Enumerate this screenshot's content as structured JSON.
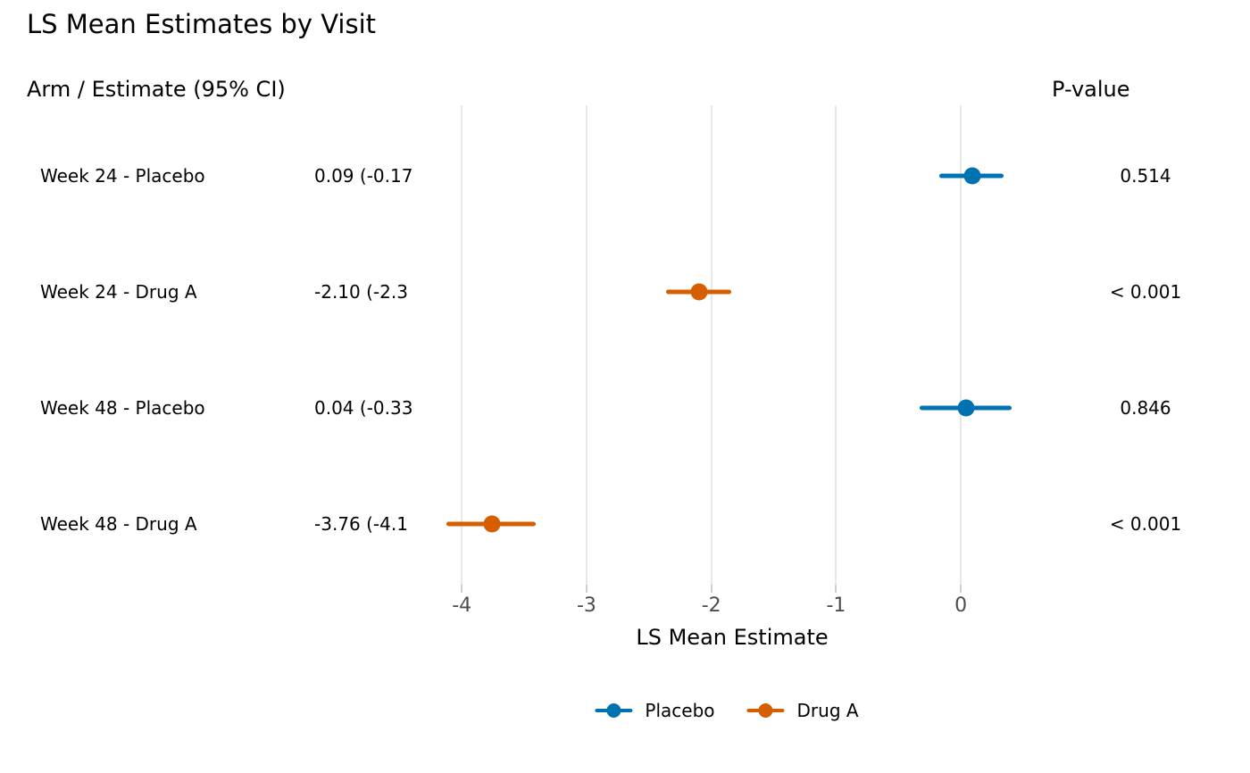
{
  "title": "LS Mean Estimates by Visit",
  "header": {
    "left": "Arm / Estimate (95% CI)",
    "right": "P-value"
  },
  "axis": {
    "title": "LS Mean Estimate",
    "tick_labels": [
      "-4",
      "-3",
      "-2",
      "-1",
      "0"
    ],
    "tick_values": [
      -4,
      -3,
      -2,
      -1,
      0
    ]
  },
  "legend": {
    "items": [
      {
        "label": "Placebo",
        "color": "#0072B2"
      },
      {
        "label": "Drug A",
        "color": "#D55E00"
      }
    ]
  },
  "colors": {
    "background": "#ffffff",
    "gridline": "#e8e8e8",
    "tick": "#cfcfcf",
    "tick_label": "#4d4d4d",
    "text": "#000000",
    "placebo": "#0072B2",
    "drug_a": "#D55E00"
  },
  "chart_data": {
    "type": "scatter",
    "subtype": "forest-plot",
    "title": "LS Mean Estimates by Visit",
    "xlabel": "LS Mean Estimate",
    "xlim": [
      -4.03,
      0.6
    ],
    "grid": "vertical-only",
    "legend_position": "bottom-center",
    "rows": [
      {
        "label": "Week 24 - Placebo",
        "arm": "Placebo",
        "estimate": 0.09,
        "ci_lower": -0.17,
        "ci_upper": 0.34,
        "estimate_text": "0.09 (-0.17",
        "p_value": "0.514"
      },
      {
        "label": "Week 24 - Drug A",
        "arm": "Drug A",
        "estimate": -2.1,
        "ci_lower": -2.36,
        "ci_upper": -1.84,
        "estimate_text": "-2.10 (-2.3",
        "p_value": "< 0.001"
      },
      {
        "label": "Week 48 - Placebo",
        "arm": "Placebo",
        "estimate": 0.04,
        "ci_lower": -0.33,
        "ci_upper": 0.41,
        "estimate_text": "0.04 (-0.33",
        "p_value": "0.846"
      },
      {
        "label": "Week 48 - Drug A",
        "arm": "Drug A",
        "estimate": -3.76,
        "ci_lower": -4.12,
        "ci_upper": -3.41,
        "estimate_text": "-3.76 (-4.1",
        "p_value": "< 0.001"
      }
    ],
    "series": [
      {
        "name": "Placebo",
        "color": "#0072B2"
      },
      {
        "name": "Drug A",
        "color": "#D55E00"
      }
    ]
  }
}
